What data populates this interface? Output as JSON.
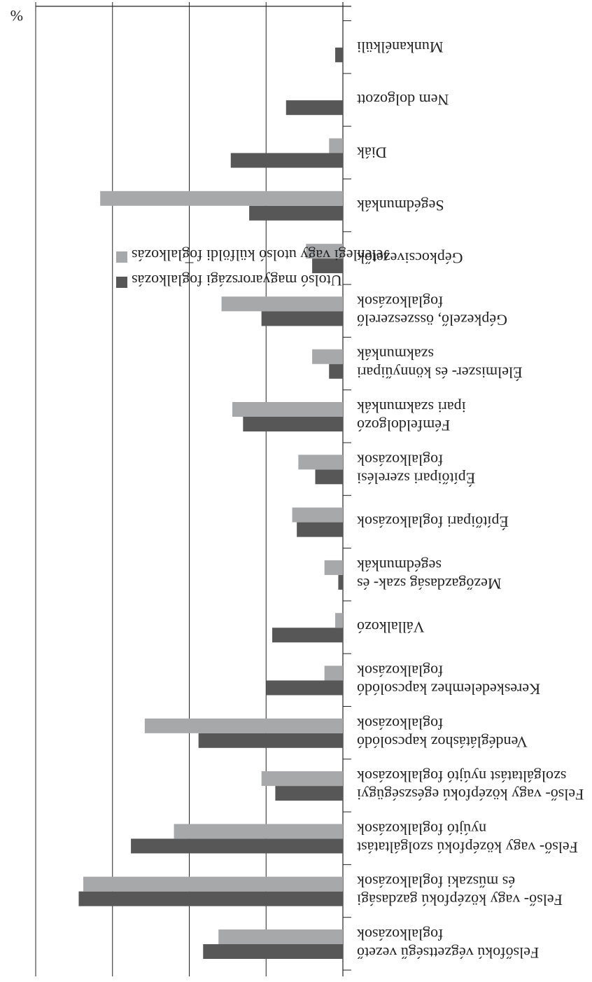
{
  "chart_data": {
    "type": "bar",
    "orientation": "horizontal",
    "value_unit": "%",
    "xlim": [
      0,
      20
    ],
    "ticks": [
      0,
      5,
      10,
      15,
      20
    ],
    "grid": true,
    "legend_position": "top-right",
    "series": [
      {
        "name": "Utolsó magyarországi foglalkozás",
        "color": "#575757",
        "values": [
          9.1,
          17.2,
          13.8,
          4.4,
          9.4,
          5.0,
          4.6,
          0.3,
          3.0,
          1.8,
          6.5,
          0.9,
          5.3,
          2.0,
          6.1,
          7.3,
          3.7,
          0.5
        ]
      },
      {
        "name": "Jelenlegi vagy utolsó külföldi foglalkozás",
        "color": "#a7a8aa",
        "values": [
          8.1,
          16.9,
          11.0,
          5.3,
          12.9,
          1.2,
          0.5,
          1.2,
          3.3,
          2.9,
          7.2,
          2.0,
          7.9,
          2.4,
          15.8,
          0.9,
          0.0,
          0.0
        ]
      }
    ],
    "categories": [
      {
        "lines": [
          "Felsőfokú végzettségű vezető",
          "foglalkozások"
        ]
      },
      {
        "lines": [
          "Felső- vagy középfokú gazdasági",
          "és műszaki foglalkozások"
        ]
      },
      {
        "lines": [
          "Felső- vagy középfokú szolgáltatást",
          "nyújtó foglalkozások"
        ]
      },
      {
        "lines": [
          "Felső- vagy középfokú egészségügyi",
          "szolgáltatást nyújtó foglalkozások"
        ]
      },
      {
        "lines": [
          "Vendéglátáshoz kapcsolódó",
          "foglalkozások"
        ]
      },
      {
        "lines": [
          "Kereskedelemhez kapcsolódó",
          "foglalkozások"
        ]
      },
      {
        "lines": [
          "Vállalkozó"
        ]
      },
      {
        "lines": [
          "Mezőgazdaság szak- és",
          "segédmunkák"
        ]
      },
      {
        "lines": [
          "Építőipari foglalkozások"
        ]
      },
      {
        "lines": [
          "Építőipari szerelési",
          "foglalkozások"
        ]
      },
      {
        "lines": [
          "Fémfeldolgozó",
          "ipari szakmunkák"
        ]
      },
      {
        "lines": [
          "Élelmiszer- és könnyűipari",
          "szakmunkák"
        ]
      },
      {
        "lines": [
          "Gépkezelő, összeszerelő",
          "foglalkozások"
        ]
      },
      {
        "lines": [
          "Gépkocsivezetők"
        ]
      },
      {
        "lines": [
          "Segédmunkák"
        ]
      },
      {
        "lines": [
          "Diák"
        ]
      },
      {
        "lines": [
          "Nem dolgozott"
        ]
      },
      {
        "lines": [
          "Munkanélküli"
        ]
      }
    ]
  }
}
